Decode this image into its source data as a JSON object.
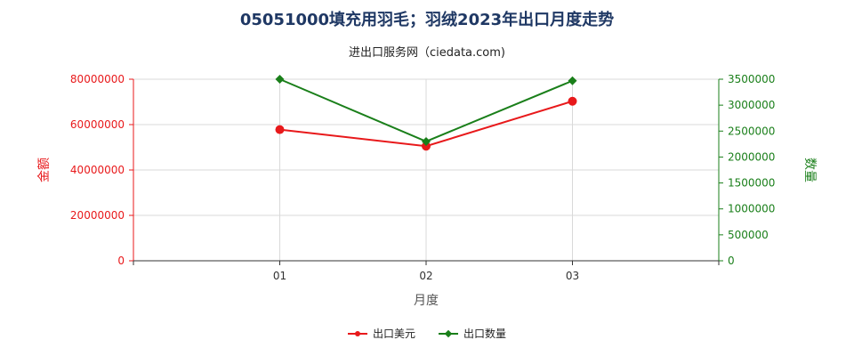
{
  "title": "05051000填充用羽毛；羽绒2023年出口月度走势",
  "subtitle": "进出口服务网（ciedata.com)",
  "colors": {
    "series1": "#e8191b",
    "series2": "#1a7f1a",
    "title": "#1f3864"
  },
  "chart_data": {
    "type": "line",
    "title": "05051000填充用羽毛；羽绒2023年出口月度走势",
    "xlabel": "月度",
    "ylabel_left": "金额",
    "ylabel_right": "数量",
    "categories": [
      "01",
      "02",
      "03"
    ],
    "x_range": [
      0,
      4
    ],
    "ylim_left": [
      0,
      80000000
    ],
    "ylim_right": [
      0,
      3500000
    ],
    "yticks_left": [
      "0",
      "20000000",
      "40000000",
      "60000000",
      "80000000"
    ],
    "yticks_right": [
      "0",
      "500000",
      "1000000",
      "1500000",
      "2000000",
      "2500000",
      "3000000",
      "3500000"
    ],
    "grid": true,
    "legend_position": "bottom",
    "series": [
      {
        "name": "出口美元",
        "axis": "left",
        "color": "#e8191b",
        "marker": "circle",
        "values": [
          57800000,
          50500000,
          70300000
        ]
      },
      {
        "name": "出口数量",
        "axis": "right",
        "color": "#1a7f1a",
        "marker": "diamond",
        "values": [
          3500000,
          2300000,
          3470000
        ]
      }
    ]
  }
}
